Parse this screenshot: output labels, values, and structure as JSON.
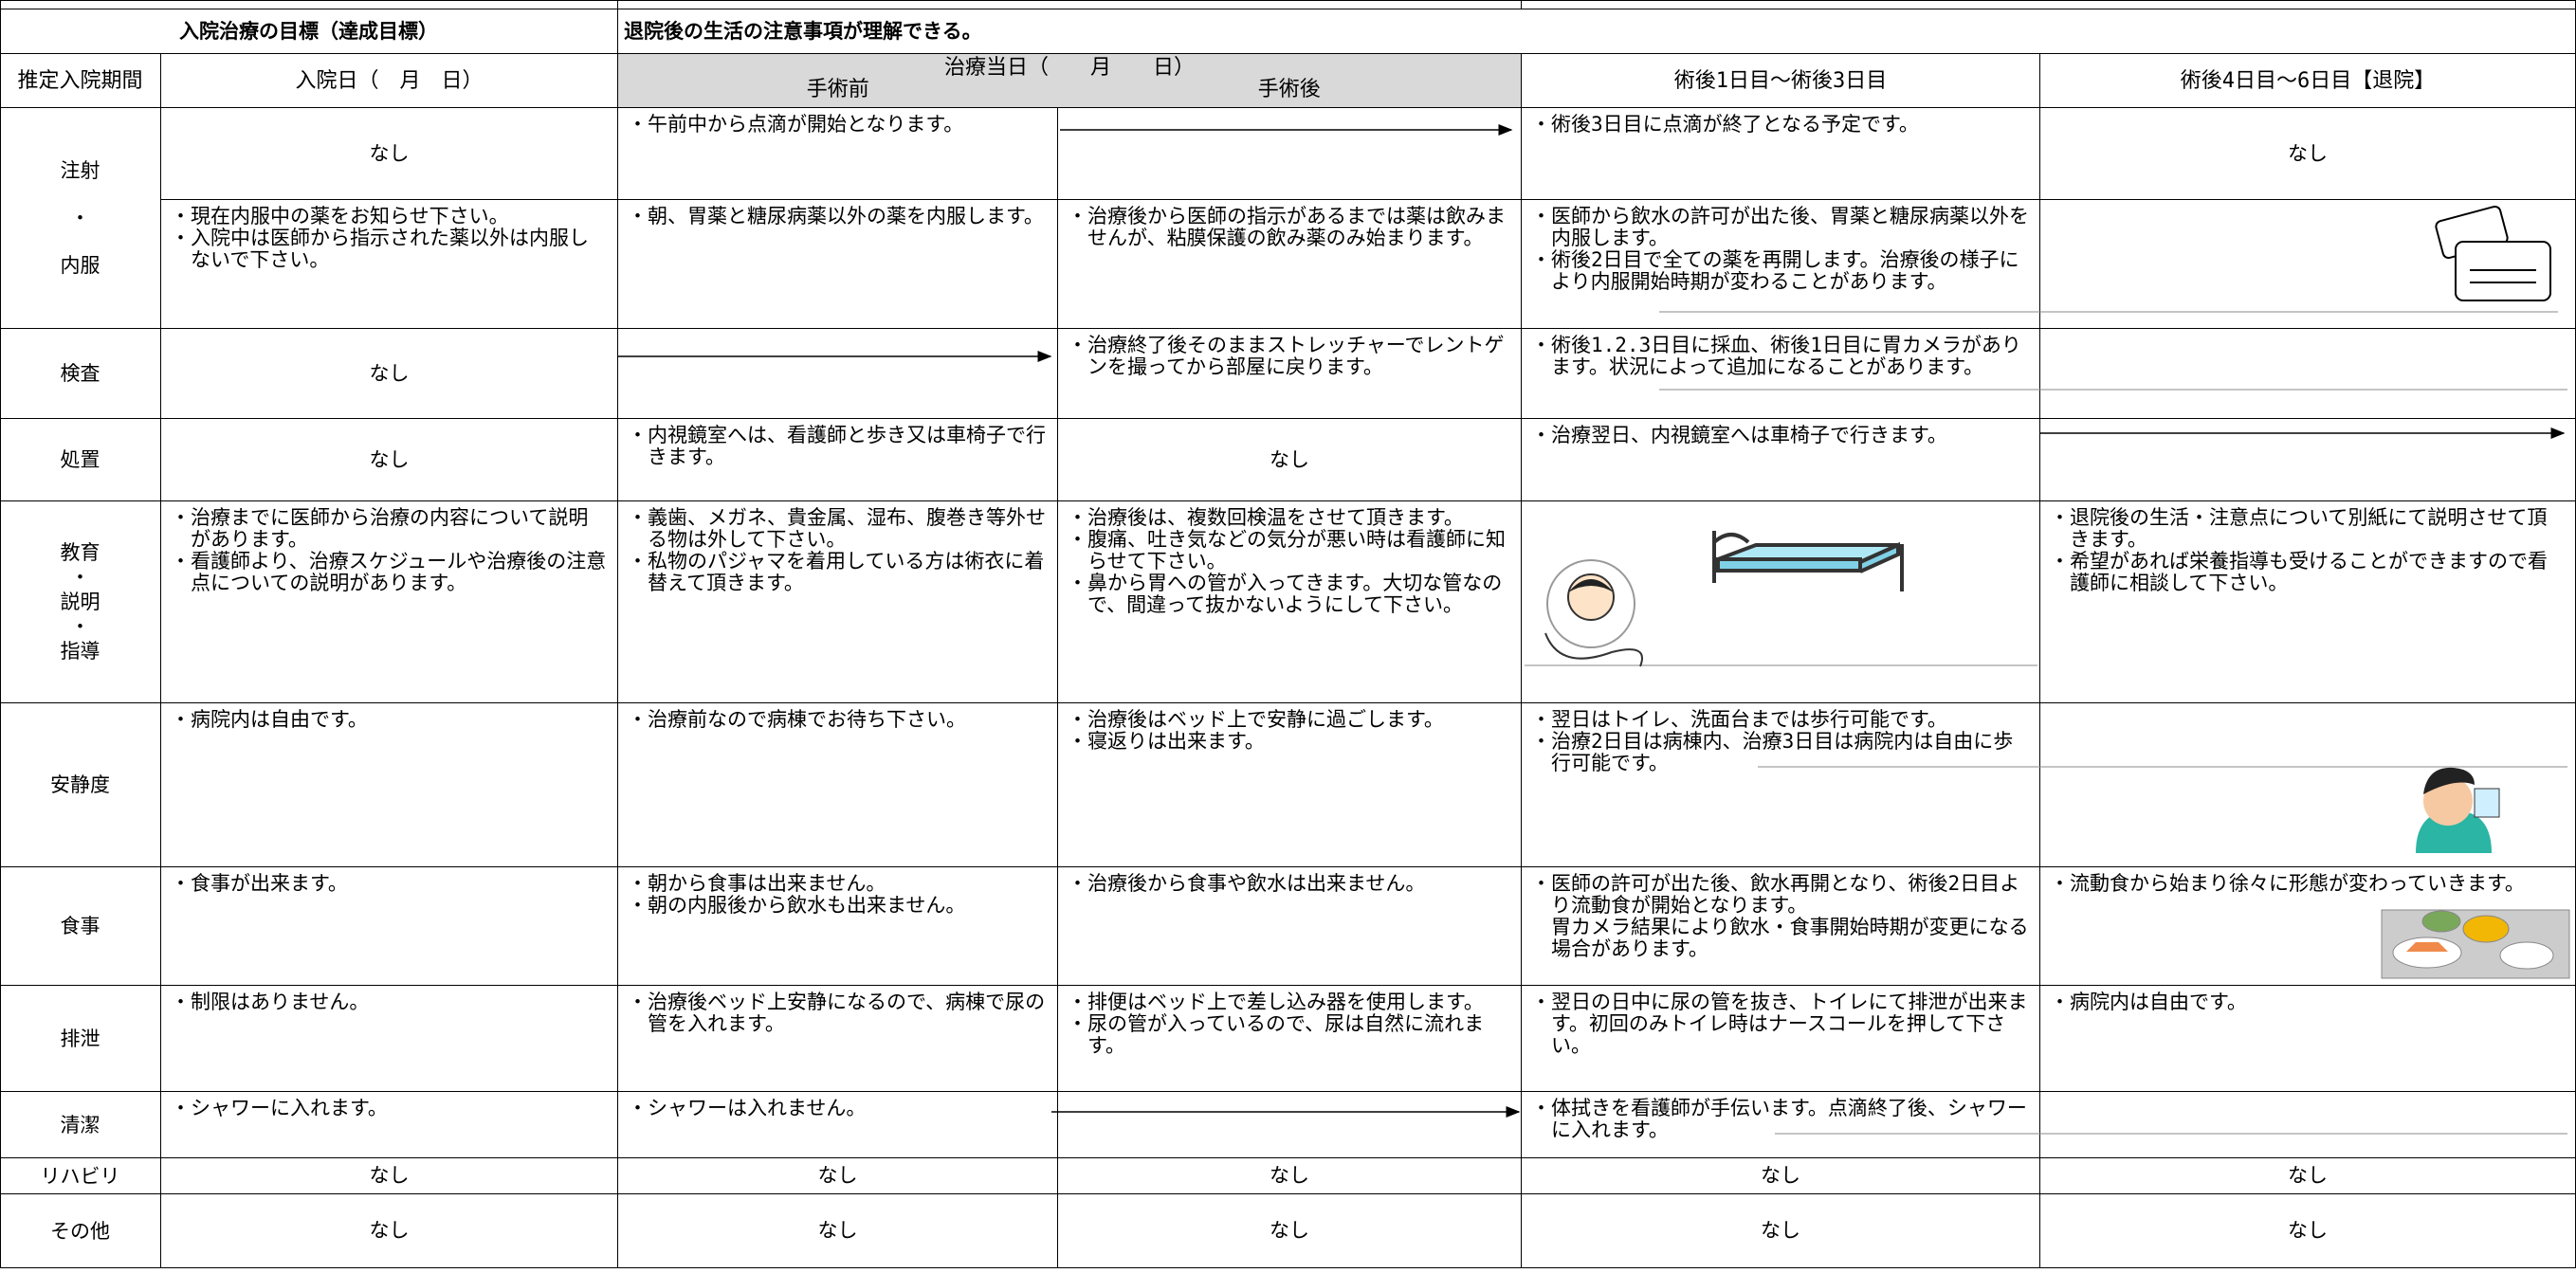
{
  "goal": {
    "label": "入院治療の目標（達成目標）",
    "text": "退院後の生活の注意事項が理解できる。"
  },
  "header": {
    "period": "推定入院期間",
    "day0": "入院日（　月　日）",
    "surgery_day": "治療当日（　　月　　日）",
    "before": "手術前",
    "after": "手術後",
    "post1": "術後1日目～術後3日目",
    "post4": "術後4日目～6日目【退院】"
  },
  "rows": [
    {
      "label": [
        "注射",
        "・",
        "内服"
      ],
      "cells": [
        "なし",
        [
          "・午前中から点滴が開始となります。"
        ],
        null,
        [
          "・術後3日目に点滴が終了となる予定です。"
        ],
        "なし"
      ]
    },
    {
      "cells": [
        [
          "・現在内服中の薬をお知らせ下さい。",
          "・入院中は医師から指示された薬以外は内服しないで下さい。"
        ],
        [
          "・朝、胃薬と糖尿病薬以外の薬を内服します。"
        ],
        [
          "・治療後から医師の指示があるまでは薬は飲みませんが、粘膜保護の飲み薬のみ始まります。"
        ],
        [
          "・医師から飲水の許可が出た後、胃薬と糖尿病薬以外を内服します。",
          "・術後2日目で全ての薬を再開します。治療後の様子により内服開始時期が変わることがあります。"
        ],
        null
      ]
    },
    {
      "label": [
        "検査"
      ],
      "cells": [
        "なし",
        null,
        [
          "・治療終了後そのままストレッチャーでレントゲンを撮ってから部屋に戻ります。"
        ],
        [
          "・術後1.2.3日目に採血、術後1日目に胃カメラがあります。状況によって追加になることがあります。"
        ],
        null
      ]
    },
    {
      "label": [
        "処置"
      ],
      "cells": [
        "なし",
        [
          "・内視鏡室へは、看護師と歩き又は車椅子で行きます。"
        ],
        "なし",
        [
          "・治療翌日、内視鏡室へは車椅子で行きます。"
        ],
        null
      ]
    },
    {
      "label": [
        "教育",
        "・",
        "説明",
        "・",
        "指導"
      ],
      "cells": [
        [
          "・治療までに医師から治療の内容について説明があります。",
          "・看護師より、治療スケジュールや治療後の注意点についての説明があります。"
        ],
        [
          "・義歯、メガネ、貴金属、湿布、腹巻き等外せる物は外して下さい。",
          "・私物のパジャマを着用している方は術衣に着替えて頂きます。"
        ],
        [
          "・治療後は、複数回検温をさせて頂きます。",
          "・腹痛、吐き気などの気分が悪い時は看護師に知らせて下さい。",
          "・鼻から胃への管が入ってきます。大切な管なので、間違って抜かないようにして下さい。"
        ],
        null,
        [
          "・退院後の生活・注意点について別紙にて説明させて頂きます。",
          "・希望があれば栄養指導も受けることができますので看護師に相談して下さい。"
        ]
      ]
    },
    {
      "label": [
        "安静度"
      ],
      "cells": [
        [
          "・病院内は自由です。"
        ],
        [
          "・治療前なので病棟でお待ち下さい。"
        ],
        [
          "・治療後はベッド上で安静に過ごします。",
          "・寝返りは出来ます。"
        ],
        [
          "・翌日はトイレ、洗面台までは歩行可能です。",
          "・治療2日目は病棟内、治療3日目は病院内は自由に歩行可能です。"
        ],
        null
      ]
    },
    {
      "label": [
        "食事"
      ],
      "cells": [
        [
          "・食事が出来ます。"
        ],
        [
          "・朝から食事は出来ません。",
          "・朝の内服後から飲水も出来ません。"
        ],
        [
          "・治療後から食事や飲水は出来ません。"
        ],
        [
          "・医師の許可が出た後、飲水再開となり、術後2日目より流動食が開始となります。",
          "胃カメラ結果により飲水・食事開始時期が変更になる場合があります。"
        ],
        [
          "・流動食から始まり徐々に形態が変わっていきます。"
        ]
      ]
    },
    {
      "label": [
        "排泄"
      ],
      "cells": [
        [
          "・制限はありません。"
        ],
        [
          "・治療後ベッド上安静になるので、病棟で尿の管を入れます。"
        ],
        [
          "・排便はベッド上で差し込み器を使用します。",
          "・尿の管が入っているので、尿は自然に流れます。"
        ],
        [
          "・翌日の日中に尿の管を抜き、トイレにて排泄が出来ます。初回のみトイレ時はナースコールを押して下さい。"
        ],
        [
          "・病院内は自由です。"
        ]
      ]
    },
    {
      "label": [
        "清潔"
      ],
      "cells": [
        [
          "・シャワーに入れます。"
        ],
        [
          "・シャワーは入れません。"
        ],
        null,
        [
          "・体拭きを看護師が手伝います。点滴終了後、シャワーに入れます。"
        ],
        null
      ]
    },
    {
      "label": [
        "リハビリ"
      ],
      "cells": [
        "なし",
        "なし",
        "なし",
        "なし",
        "なし"
      ]
    },
    {
      "label": [
        "その他"
      ],
      "cells": [
        "なし",
        "なし",
        "なし",
        "なし",
        "なし"
      ]
    }
  ]
}
